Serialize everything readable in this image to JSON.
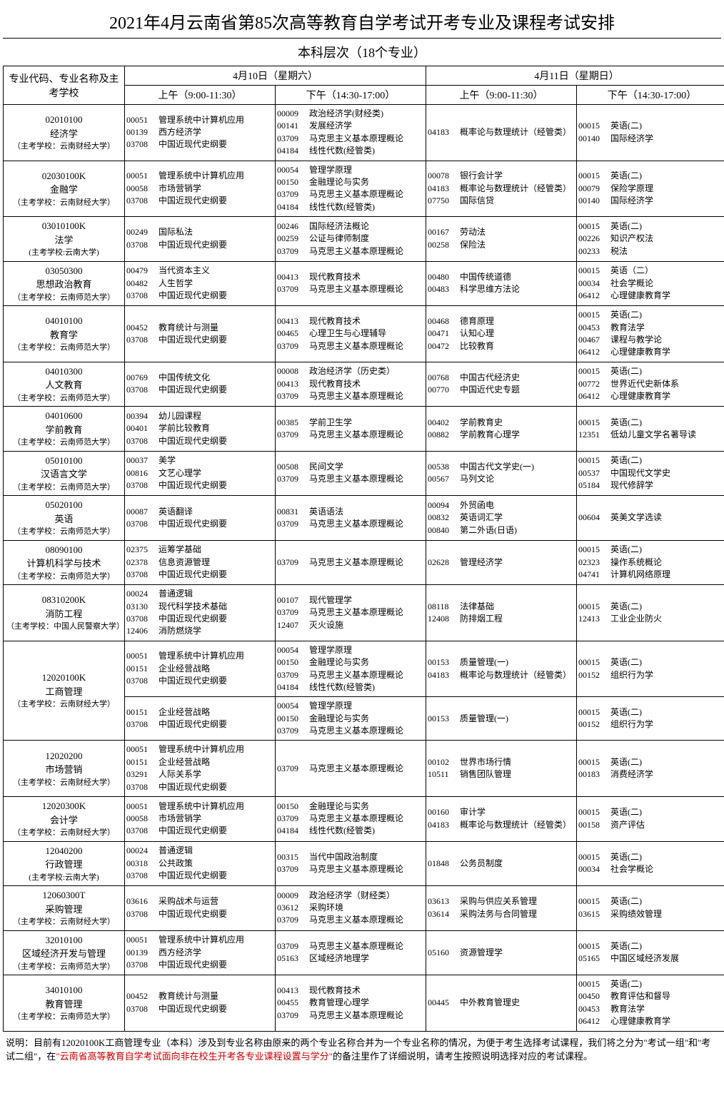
{
  "title": "2021年4月云南省第85次高等教育自学考试开考专业及课程考试安排",
  "subtitle": "本科层次（18个专业）",
  "header": {
    "majorCol": "专业代码、专业名称及主考学校",
    "day1": "4月10日（星期六）",
    "day2": "4月11日（星期日）",
    "am": "上午（9:00-11:30）",
    "pm": "下午（14:30-17:00）"
  },
  "rows": [
    {
      "code": "02010100",
      "name": "经济学",
      "school": "（主考学校：云南财经大学）",
      "s": [
        [
          [
            "00051",
            "管理系统中计算机应用"
          ],
          [
            "00139",
            "西方经济学"
          ],
          [
            "03708",
            "中国近现代史纲要"
          ]
        ],
        [
          [
            "00009",
            "政治经济学(财经类)"
          ],
          [
            "00141",
            "发展经济学"
          ],
          [
            "03709",
            "马克思主义基本原理概论"
          ],
          [
            "04184",
            "线性代数(经管类)"
          ]
        ],
        [
          [
            "04183",
            "概率论与数理统计（经管类）"
          ]
        ],
        [
          [
            "00015",
            "英语(二)"
          ],
          [
            "00140",
            "国际经济学"
          ]
        ]
      ]
    },
    {
      "code": "02030100K",
      "name": "金融学",
      "school": "（主考学校：云南财经大学）",
      "s": [
        [
          [
            "00051",
            "管理系统中计算机应用"
          ],
          [
            "00058",
            "市场营销学"
          ],
          [
            "03708",
            "中国近现代史纲要"
          ]
        ],
        [
          [
            "00054",
            "管理学原理"
          ],
          [
            "00150",
            "金融理论与实务"
          ],
          [
            "03709",
            "马克思主义基本原理概论"
          ],
          [
            "04184",
            "线性代数(经管类)"
          ]
        ],
        [
          [
            "00078",
            "银行会计学"
          ],
          [
            "04183",
            "概率论与数理统计（经管类）"
          ],
          [
            "07750",
            "国际信贷"
          ]
        ],
        [
          [
            "00015",
            "英语(二)"
          ],
          [
            "00079",
            "保险学原理"
          ],
          [
            "00140",
            "国际经济学"
          ]
        ]
      ]
    },
    {
      "code": "03010100K",
      "name": "法学",
      "school": "(主考学校:云南大学)",
      "s": [
        [
          [
            "00249",
            "国际私法"
          ],
          [
            "03708",
            "中国近现代史纲要"
          ]
        ],
        [
          [
            "00246",
            "国际经济法概论"
          ],
          [
            "00259",
            "公证与律师制度"
          ],
          [
            "03709",
            "马克思主义基本原理概论"
          ]
        ],
        [
          [
            "00167",
            "劳动法"
          ],
          [
            "00258",
            "保险法"
          ]
        ],
        [
          [
            "00015",
            "英语(二)"
          ],
          [
            "00226",
            "知识产权法"
          ],
          [
            "00233",
            "税法"
          ]
        ]
      ]
    },
    {
      "code": "03050300",
      "name": "思想政治教育",
      "school": "（主考学校：云南师范大学）",
      "s": [
        [
          [
            "00479",
            "当代资本主义"
          ],
          [
            "00482",
            "人生哲学"
          ],
          [
            "03708",
            "中国近现代史纲要"
          ]
        ],
        [
          [
            "00413",
            "现代教育技术"
          ],
          [
            "03709",
            "马克思主义基本原理概论"
          ]
        ],
        [
          [
            "00480",
            "中国传统道德"
          ],
          [
            "00483",
            "科学思维方法论"
          ]
        ],
        [
          [
            "00015",
            "英语（二）"
          ],
          [
            "00034",
            "社会学概论"
          ],
          [
            "06412",
            "心理健康教育学"
          ]
        ]
      ]
    },
    {
      "code": "04010100",
      "name": "教育学",
      "school": "（主考学校：云南师范大学）",
      "s": [
        [
          [
            "00452",
            "教育统计与测量"
          ],
          [
            "03708",
            "中国近现代史纲要"
          ]
        ],
        [
          [
            "00413",
            "现代教育技术"
          ],
          [
            "00465",
            "心理卫生与心理辅导"
          ],
          [
            "03709",
            "马克思主义基本原理概论"
          ]
        ],
        [
          [
            "00468",
            "德育原理"
          ],
          [
            "00471",
            "认知心理"
          ],
          [
            "00472",
            "比较教育"
          ]
        ],
        [
          [
            "00015",
            "英语(二)"
          ],
          [
            "00453",
            "教育法学"
          ],
          [
            "00467",
            "课程与教学论"
          ],
          [
            "06412",
            "心理健康教育学"
          ]
        ]
      ]
    },
    {
      "code": "04010300",
      "name": "人文教育",
      "school": "（主考学校：云南师范大学）",
      "s": [
        [
          [
            "00769",
            "中国传统文化"
          ],
          [
            "03708",
            "中国近现代史纲要"
          ]
        ],
        [
          [
            "00008",
            "政治经济学（历史类）"
          ],
          [
            "00413",
            "现代教育技术"
          ],
          [
            "03709",
            "马克思主义基本原理概论"
          ]
        ],
        [
          [
            "00768",
            "中国古代经济史"
          ],
          [
            "00770",
            "中国近代史专题"
          ]
        ],
        [
          [
            "00015",
            "英语(二)"
          ],
          [
            "00772",
            "世界近代史新体系"
          ],
          [
            "06412",
            "心理健康教育学"
          ]
        ]
      ]
    },
    {
      "code": "04010600",
      "name": "学前教育",
      "school": "（主考学校：云南师范大学）",
      "s": [
        [
          [
            "00394",
            "幼儿园课程"
          ],
          [
            "00401",
            "学前比较教育"
          ],
          [
            "03708",
            "中国近现代史纲要"
          ]
        ],
        [
          [
            "00385",
            "学前卫生学"
          ],
          [
            "03709",
            "马克思主义基本原理概论"
          ]
        ],
        [
          [
            "00402",
            "学前教育史"
          ],
          [
            "00882",
            "学前教育心理学"
          ]
        ],
        [
          [
            "00015",
            "英语(二)"
          ],
          [
            "12351",
            "低幼儿童文学名著导读"
          ]
        ]
      ]
    },
    {
      "code": "05010100",
      "name": "汉语言文学",
      "school": "（主考学校：云南师范大学）",
      "s": [
        [
          [
            "00037",
            "美学"
          ],
          [
            "00816",
            "文艺心理学"
          ],
          [
            "03708",
            "中国近现代史纲要"
          ]
        ],
        [
          [
            "00508",
            "民间文学"
          ],
          [
            "03709",
            "马克思主义基本原理概论"
          ]
        ],
        [
          [
            "00538",
            "中国古代文学史(一)"
          ],
          [
            "00567",
            "马列文论"
          ]
        ],
        [
          [
            "00015",
            "英语(二)"
          ],
          [
            "00537",
            "中国现代文学史"
          ],
          [
            "05184",
            "现代修辞学"
          ]
        ]
      ]
    },
    {
      "code": "05020100",
      "name": "英语",
      "school": "（主考学校：云南师范大学）",
      "s": [
        [
          [
            "00087",
            "英语翻译"
          ],
          [
            "03708",
            "中国近现代史纲要"
          ]
        ],
        [
          [
            "00831",
            "英语语法"
          ],
          [
            "03709",
            "马克思主义基本原理概论"
          ]
        ],
        [
          [
            "00094",
            "外贸函电"
          ],
          [
            "00832",
            "英语词汇学"
          ],
          [
            "00840",
            "第二外语(日语)"
          ]
        ],
        [
          [
            "00604",
            "英美文学选读"
          ]
        ]
      ]
    },
    {
      "code": "08090100",
      "name": "计算机科学与技术",
      "school": "（主考学校：云南师范大学）",
      "s": [
        [
          [
            "02375",
            "运筹学基础"
          ],
          [
            "02378",
            "信息资源管理"
          ],
          [
            "03708",
            "中国近现代史纲要"
          ]
        ],
        [
          [
            "03709",
            "马克思主义基本原理概论"
          ]
        ],
        [
          [
            "02628",
            "管理经济学"
          ]
        ],
        [
          [
            "00015",
            "英语(二)"
          ],
          [
            "02323",
            "操作系统概论"
          ],
          [
            "04741",
            "计算机网络原理"
          ]
        ]
      ]
    },
    {
      "code": "08310200K",
      "name": "消防工程",
      "school": "（主考学校：中国人民警察大学）",
      "s": [
        [
          [
            "00024",
            "普通逻辑"
          ],
          [
            "03130",
            "现代科学技术基础"
          ],
          [
            "03708",
            "中国近现代史纲要"
          ],
          [
            "12406",
            "消防燃烧学"
          ]
        ],
        [
          [
            "00107",
            "现代管理学"
          ],
          [
            "03709",
            "马克思主义基本原理概论"
          ],
          [
            "12407",
            "灭火设施"
          ]
        ],
        [
          [
            "08118",
            "法律基础"
          ],
          [
            "12408",
            "防排烟工程"
          ]
        ],
        [
          [
            "00015",
            "英语(二)"
          ],
          [
            "12413",
            "工业企业防火"
          ]
        ]
      ]
    },
    {
      "code": "12020100K",
      "name": "工商管理",
      "school": "（主考学校：云南财经大学）",
      "rowspan": 2,
      "s": [
        [
          [
            "00051",
            "管理系统中计算机应用"
          ],
          [
            "00151",
            "企业经营战略"
          ],
          [
            "03708",
            "中国近现代史纲要"
          ]
        ],
        [
          [
            "00054",
            "管理学原理"
          ],
          [
            "00150",
            "金融理论与实务"
          ],
          [
            "03709",
            "马克思主义基本原理概论"
          ],
          [
            "04184",
            "线性代数(经管类)"
          ]
        ],
        [
          [
            "00153",
            "质量管理(一)"
          ],
          [
            "04183",
            "概率论与数理统计（经管类）"
          ]
        ],
        [
          [
            "00015",
            "英语(二)"
          ],
          [
            "00152",
            "组织行为学"
          ]
        ]
      ]
    },
    {
      "extra": true,
      "s": [
        [
          [
            "00151",
            "企业经营战略"
          ],
          [
            "03708",
            "中国近现代史纲要"
          ]
        ],
        [
          [
            "00054",
            "管理学原理"
          ],
          [
            "00150",
            "金融理论与实务"
          ],
          [
            "03709",
            "马克思主义基本原理概论"
          ]
        ],
        [
          [
            "00153",
            "质量管理(一)"
          ]
        ],
        [
          [
            "00015",
            "英语(二)"
          ],
          [
            "00152",
            "组织行为学"
          ]
        ]
      ]
    },
    {
      "code": "12020200",
      "name": "市场营销",
      "school": "（主考学校：云南财经大学）",
      "s": [
        [
          [
            "00051",
            "管理系统中计算机应用"
          ],
          [
            "00151",
            "企业经营战略"
          ],
          [
            "03291",
            "人际关系学"
          ],
          [
            "03708",
            "中国近现代史纲要"
          ]
        ],
        [
          [
            "03709",
            "马克思主义基本原理概论"
          ]
        ],
        [
          [
            "00102",
            "世界市场行情"
          ],
          [
            "10511",
            "销售团队管理"
          ]
        ],
        [
          [
            "00015",
            "英语(二)"
          ],
          [
            "00183",
            "消费经济学"
          ]
        ]
      ]
    },
    {
      "code": "12020300K",
      "name": "会计学",
      "school": "（主考学校：云南财经大学）",
      "s": [
        [
          [
            "00051",
            "管理系统中计算机应用"
          ],
          [
            "00058",
            "市场营销学"
          ],
          [
            "03708",
            "中国近现代史纲要"
          ]
        ],
        [
          [
            "00150",
            "金融理论与实务"
          ],
          [
            "03709",
            "马克思主义基本原理概论"
          ],
          [
            "04184",
            "线性代数(经管类)"
          ]
        ],
        [
          [
            "00160",
            "审计学"
          ],
          [
            "04183",
            "概率论与数理统计（经管类）"
          ]
        ],
        [
          [
            "00015",
            "英语(二)"
          ],
          [
            "00158",
            "资产评估"
          ]
        ]
      ]
    },
    {
      "code": "12040200",
      "name": "行政管理",
      "school": "(主考学校:云南大学)",
      "s": [
        [
          [
            "00024",
            "普通逻辑"
          ],
          [
            "00318",
            "公共政策"
          ],
          [
            "03708",
            "中国近现代史纲要"
          ]
        ],
        [
          [
            "00315",
            "当代中国政治制度"
          ],
          [
            "03709",
            "马克思主义基本原理概论"
          ]
        ],
        [
          [
            "01848",
            "公务员制度"
          ]
        ],
        [
          [
            "00015",
            "英语(二)"
          ],
          [
            "00034",
            "社会学概论"
          ]
        ]
      ]
    },
    {
      "code": "12060300T",
      "name": "采购管理",
      "school": "（主考学校：云南财经大学）",
      "s": [
        [
          [
            "03616",
            "采购战术与运营"
          ],
          [
            "03708",
            "中国近现代史纲要"
          ]
        ],
        [
          [
            "00009",
            "政治经济学（财经类）"
          ],
          [
            "03612",
            "采购环境"
          ],
          [
            "03709",
            "马克思主义基本原理概论"
          ]
        ],
        [
          [
            "03613",
            "采购与供应关系管理"
          ],
          [
            "03614",
            "采购法务与合同管理"
          ]
        ],
        [
          [
            "00015",
            "英语(二)"
          ],
          [
            "03615",
            "采购绩效管理"
          ]
        ]
      ]
    },
    {
      "code": "32010100",
      "name": "区域经济开发与管理",
      "school": "（主考学校：云南师范大学）",
      "s": [
        [
          [
            "00051",
            "管理系统中计算机应用"
          ],
          [
            "00139",
            "西方经济学"
          ],
          [
            "03708",
            "中国近现代史纲要"
          ]
        ],
        [
          [
            "03709",
            "马克思主义基本原理概论"
          ],
          [
            "05163",
            "区域经济地理学"
          ]
        ],
        [
          [
            "05160",
            "资源管理学"
          ]
        ],
        [
          [
            "00015",
            "英语(二)"
          ],
          [
            "05165",
            "中国区域经济发展"
          ]
        ]
      ]
    },
    {
      "code": "34010100",
      "name": "教育管理",
      "school": "（主考学校：云南师范大学）",
      "s": [
        [
          [
            "00452",
            "教育统计与测量"
          ],
          [
            "03708",
            "中国近现代史纲要"
          ]
        ],
        [
          [
            "00413",
            "现代教育技术"
          ],
          [
            "00455",
            "教育管理心理学"
          ],
          [
            "03709",
            "马克思主义基本原理概论"
          ]
        ],
        [
          [
            "00445",
            "中外教育管理史"
          ]
        ],
        [
          [
            "00015",
            "英语(二)"
          ],
          [
            "00450",
            "教育评估和督导"
          ],
          [
            "00453",
            "教育法学"
          ],
          [
            "06412",
            "心理健康教育学"
          ]
        ]
      ]
    }
  ],
  "note": {
    "prefix": "说明：目前有12020100K工商管理专业（本科）涉及到专业名称由原来的两个专业名称合并为一个专业名称的情况，为便于考生选择考试课程，我们将之分为\"考试一组\"和\"考试二组\"，在",
    "highlight": "\"云南省高等教育自学考试面向非在校生开考各专业课程设置与学分\"",
    "suffix": "的备注里作了详细说明，请考生按照说明选择对应的考试课程。"
  }
}
